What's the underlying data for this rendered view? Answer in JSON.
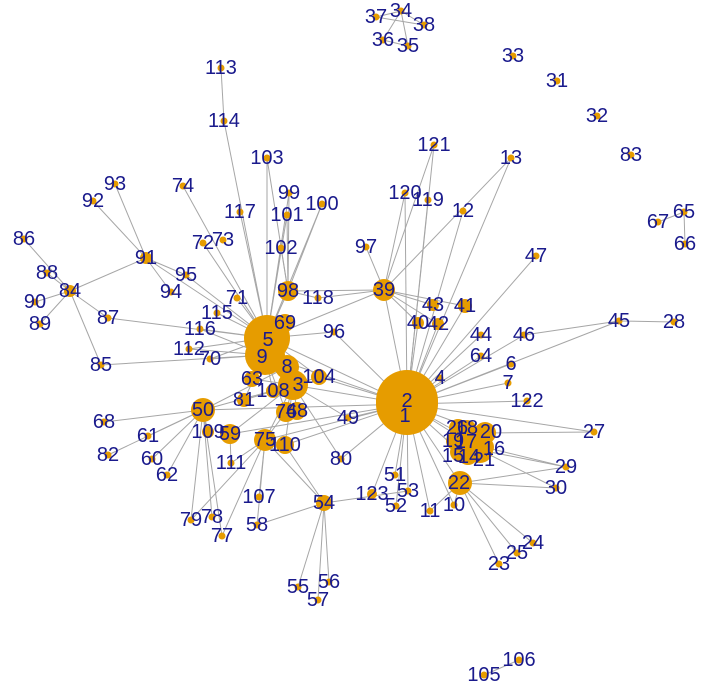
{
  "graph": {
    "node_color": "#e69c00",
    "edge_color": "#a6a6a6",
    "label_color": "#1a1a8c"
  },
  "labels": [
    "1",
    "2",
    "3",
    "4",
    "5",
    "6",
    "7",
    "8",
    "9",
    "10",
    "11",
    "12",
    "13",
    "14",
    "15",
    "16",
    "17",
    "18",
    "19",
    "20",
    "21",
    "22",
    "23",
    "24",
    "25",
    "26",
    "27",
    "28",
    "29",
    "30",
    "31",
    "32",
    "33",
    "34",
    "35",
    "36",
    "37",
    "38",
    "39",
    "40",
    "41",
    "42",
    "43",
    "44",
    "45",
    "46",
    "47",
    "48",
    "49",
    "50",
    "51",
    "52",
    "53",
    "54",
    "55",
    "56",
    "57",
    "58",
    "59",
    "60",
    "61",
    "62",
    "63",
    "64",
    "65",
    "66",
    "67",
    "68",
    "69",
    "70",
    "71",
    "72",
    "73",
    "74",
    "75",
    "76",
    "77",
    "78",
    "79",
    "80",
    "81",
    "82",
    "83",
    "84",
    "85",
    "86",
    "87",
    "88",
    "89",
    "90",
    "91",
    "92",
    "93",
    "94",
    "95",
    "96",
    "97",
    "98",
    "99",
    "100",
    "101",
    "102",
    "103",
    "104",
    "105",
    "106",
    "107",
    "108",
    "109",
    "110",
    "111",
    "112",
    "113",
    "114",
    "115",
    "116",
    "117",
    "118",
    "119",
    "120",
    "121",
    "122",
    "123"
  ]
}
